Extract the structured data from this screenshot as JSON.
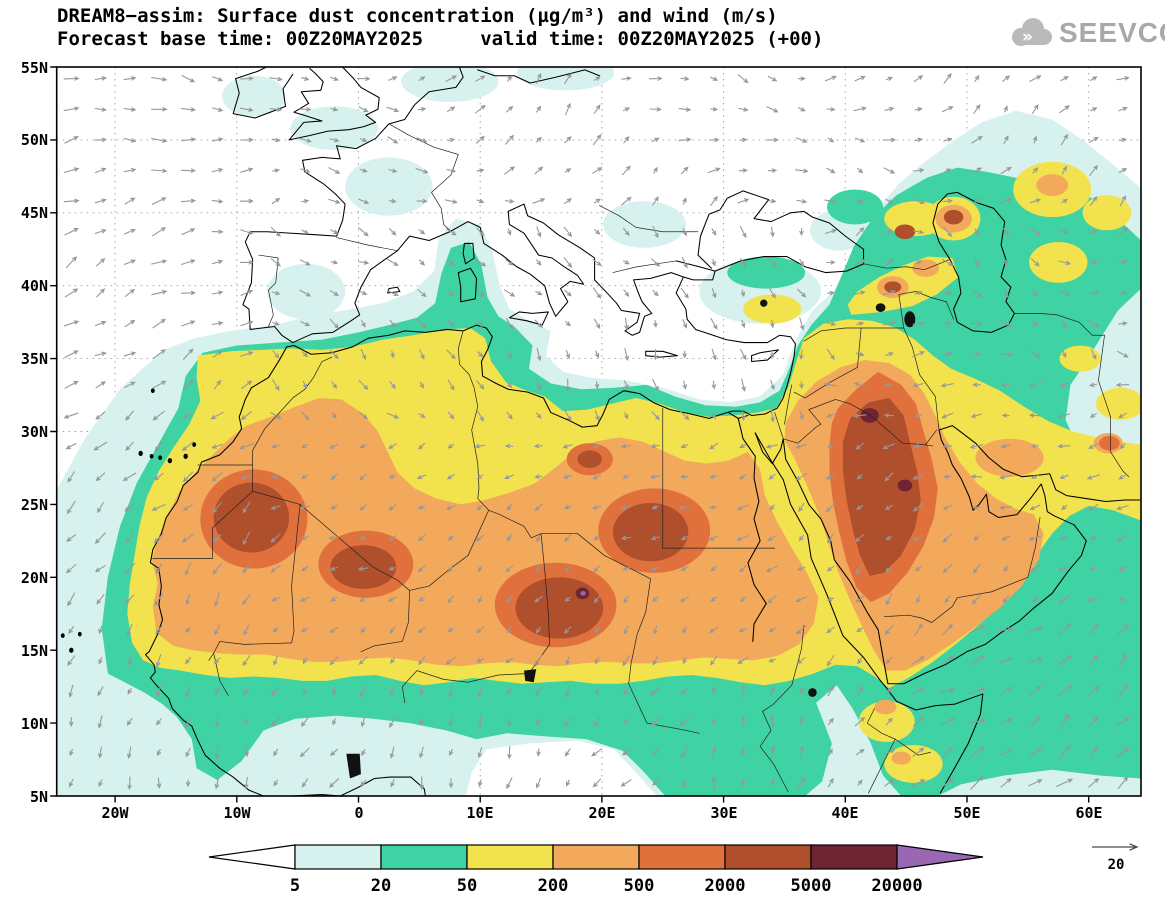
{
  "header": {
    "title": "DREAM8−assim: Surface dust concentration (µg/m³) and wind (m/s)",
    "subtitle": "Forecast base time: 00Z20MAY2025     valid time: 00Z20MAY2025 (+00)"
  },
  "logo": {
    "text": "SEEVCCC"
  },
  "map": {
    "lat_ticks": [
      {
        "label": "55N",
        "value": 55
      },
      {
        "label": "50N",
        "value": 50
      },
      {
        "label": "45N",
        "value": 45
      },
      {
        "label": "40N",
        "value": 40
      },
      {
        "label": "35N",
        "value": 35
      },
      {
        "label": "30N",
        "value": 30
      },
      {
        "label": "25N",
        "value": 25
      },
      {
        "label": "20N",
        "value": 20
      },
      {
        "label": "15N",
        "value": 15
      },
      {
        "label": "10N",
        "value": 10
      },
      {
        "label": "5N",
        "value": 5
      }
    ],
    "lon_ticks": [
      {
        "label": "20W",
        "value": -20
      },
      {
        "label": "10W",
        "value": -10
      },
      {
        "label": "0",
        "value": 0
      },
      {
        "label": "10E",
        "value": 10
      },
      {
        "label": "20E",
        "value": 20
      },
      {
        "label": "30E",
        "value": 30
      },
      {
        "label": "40E",
        "value": 40
      },
      {
        "label": "50E",
        "value": 50
      },
      {
        "label": "60E",
        "value": 60
      }
    ]
  },
  "colorbar": {
    "labels": [
      "5",
      "20",
      "50",
      "200",
      "500",
      "2000",
      "5000",
      "20000"
    ],
    "colors": [
      "#ffffff",
      "#d7f2ee",
      "#3fd2a3",
      "#f2e24e",
      "#f2a95c",
      "#e0713c",
      "#af4f2c",
      "#6f2433",
      "#9a68b3"
    ]
  },
  "wind_reference": {
    "label": "20"
  },
  "chart_data": {
    "type": "heatmap",
    "title": "DREAM8−assim: Surface dust concentration (µg/m³) and wind (m/s)",
    "forecast_base_time": "00Z20MAY2025",
    "valid_time": "00Z20MAY2025 (+00)",
    "colorbar_levels": [
      5,
      20,
      50,
      200,
      500,
      2000,
      5000,
      20000
    ],
    "colorbar_colors": [
      "#ffffff",
      "#d7f2ee",
      "#3fd2a3",
      "#f2e24e",
      "#f2a95c",
      "#e0713c",
      "#af4f2c",
      "#6f2433",
      "#9a68b3"
    ],
    "units": "µg/m³",
    "wind_units": "m/s",
    "wind_reference_ms": 20,
    "lat_tick_labels": [
      "55N",
      "50N",
      "45N",
      "40N",
      "35N",
      "30N",
      "25N",
      "20N",
      "15N",
      "10N",
      "5N"
    ],
    "lon_tick_labels": [
      "20W",
      "10W",
      "0",
      "10E",
      "20E",
      "30E",
      "40E",
      "50E",
      "60E"
    ],
    "legend_position": "bottom"
  }
}
